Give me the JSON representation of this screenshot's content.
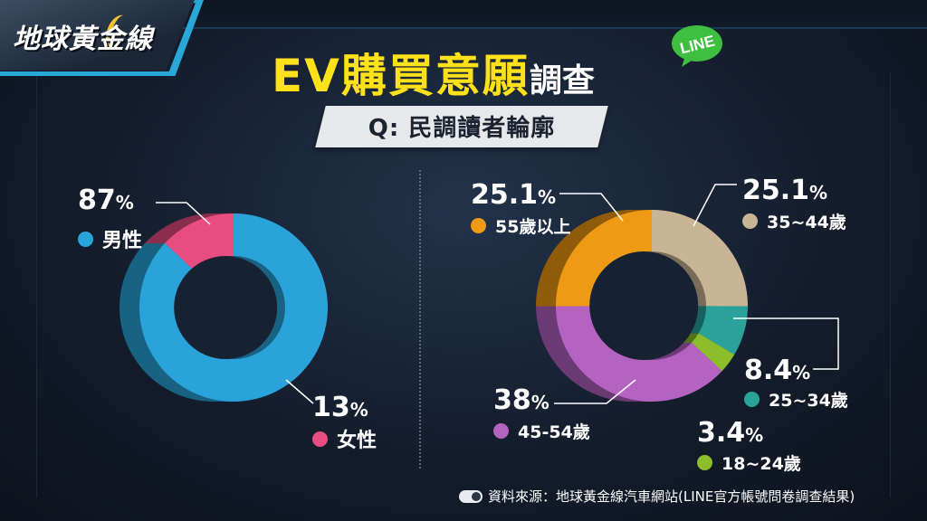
{
  "brand": {
    "logo_text": "地球黃金線"
  },
  "header": {
    "title_highlight": "EV購買意願",
    "title_rest": "調查",
    "badge": "LINE",
    "subtitle": "Q: 民調讀者輪廓"
  },
  "colors": {
    "male": "#29a3da",
    "female": "#e84d82",
    "age_55_plus": "#ee9a14",
    "age_35_44": "#c9b596",
    "age_25_34": "#2aa29a",
    "age_18_24": "#8cbd2a",
    "age_45_54": "#b463c1",
    "line_green": "#3fbf3f"
  },
  "chart_data": [
    {
      "type": "pie",
      "series": [
        {
          "name": "男性",
          "value": 87,
          "label": "87"
        },
        {
          "name": "女性",
          "value": 13,
          "label": "13"
        }
      ],
      "unit": "%"
    },
    {
      "type": "pie",
      "series": [
        {
          "name": "55歲以上",
          "value": 25.1,
          "label": "25.1"
        },
        {
          "name": "35~44歲",
          "value": 25.1,
          "label": "25.1"
        },
        {
          "name": "25~34歲",
          "value": 8.4,
          "label": "8.4"
        },
        {
          "name": "18~24歲",
          "value": 3.4,
          "label": "3.4"
        },
        {
          "name": "45-54歲",
          "value": 38,
          "label": "38"
        }
      ],
      "unit": "%"
    }
  ],
  "footer": {
    "source": "資料來源：地球黃金線汽車網站(LINE官方帳號問卷調查結果)"
  }
}
